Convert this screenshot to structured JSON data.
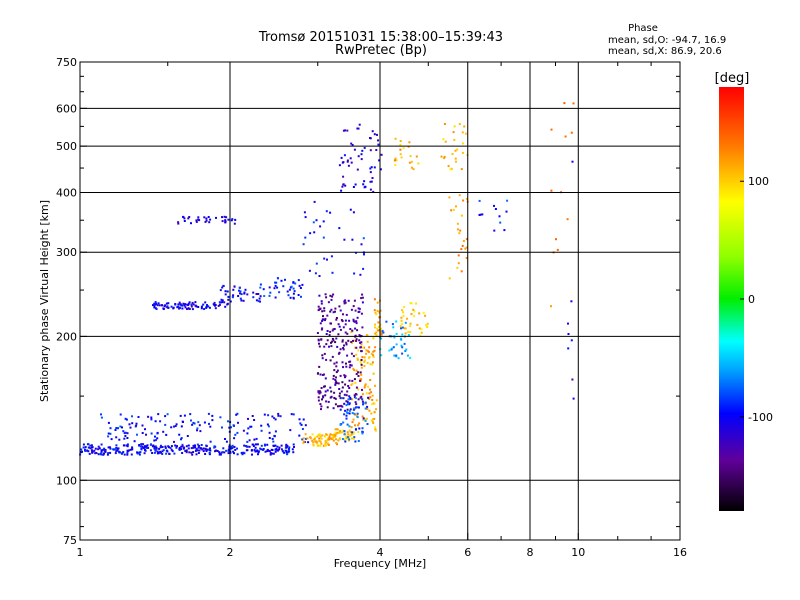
{
  "chart_data": {
    "type": "scatter",
    "title": "Tromsø 20151031 15:38:00–15:39:43",
    "subtitle": "RwPretec (Bp)",
    "xlabel": "Frequency [MHz]",
    "ylabel": "Stationary phase Virtual Height [km]",
    "x_scale": "log",
    "y_scale": "log",
    "xlim": [
      1,
      16
    ],
    "ylim": [
      75,
      750
    ],
    "x_ticks": [
      1,
      2,
      4,
      6,
      8,
      10,
      16
    ],
    "x_tick_labels": [
      "1",
      "2",
      "4",
      "6",
      "8",
      "10",
      "16"
    ],
    "x_gridlines": [
      2,
      4,
      6,
      8,
      10
    ],
    "y_ticks": [
      75,
      100,
      200,
      300,
      400,
      500,
      600,
      750
    ],
    "y_tick_labels": [
      "75",
      "100",
      "200",
      "300",
      "400",
      "500",
      "600",
      "750"
    ],
    "y_gridlines": [
      100,
      200,
      300,
      400,
      500,
      600
    ],
    "grid": true,
    "stats": {
      "heading": "Phase",
      "line_o": "mean, sd,O: -94.7, 16.9",
      "line_x": "mean, sd,X: 86.9, 20.6"
    },
    "colorbar": {
      "unit": "[deg]",
      "range": [
        -180,
        180
      ],
      "ticks": [
        100,
        0,
        -100
      ],
      "tick_labels": [
        "100",
        "0",
        "-100"
      ]
    },
    "clusters": [
      {
        "x_range": [
          1.0,
          2.7
        ],
        "y": [
          113,
          119
        ],
        "phase": -100,
        "n": 340
      },
      {
        "x_range": [
          1.1,
          2.9
        ],
        "y": [
          120,
          138
        ],
        "phase": -95,
        "n": 150
      },
      {
        "x_range": [
          1.4,
          2.0
        ],
        "y": [
          228,
          236
        ],
        "phase": -105,
        "n": 90
      },
      {
        "x_range": [
          1.9,
          2.3
        ],
        "y": [
          236,
          256
        ],
        "phase": -100,
        "n": 40
      },
      {
        "x_range": [
          2.3,
          2.8
        ],
        "y": [
          240,
          265
        ],
        "phase": -90,
        "n": 40
      },
      {
        "x_range": [
          1.55,
          2.05
        ],
        "y": [
          343,
          356
        ],
        "phase": -105,
        "n": 35
      },
      {
        "x_range": [
          2.8,
          3.3
        ],
        "y": [
          118,
          125
        ],
        "phase": 110,
        "n": 70
      },
      {
        "x_range": [
          3.2,
          3.55
        ],
        "y": [
          121,
          128
        ],
        "phase": 105,
        "n": 40
      },
      {
        "x_range": [
          3.5,
          3.95
        ],
        "y": [
          125,
          205
        ],
        "phase": 110,
        "n": 110
      },
      {
        "x_range": [
          3.9,
          4.05
        ],
        "y": [
          200,
          240
        ],
        "phase": 115,
        "n": 25
      },
      {
        "x_range": [
          3.0,
          3.7
        ],
        "y": [
          140,
          245
        ],
        "phase": -135,
        "n": 260
      },
      {
        "x_range": [
          3.3,
          3.8
        ],
        "y": [
          120,
          150
        ],
        "phase": -80,
        "n": 60
      },
      {
        "x_range": [
          4.0,
          4.6
        ],
        "y": [
          180,
          215
        ],
        "phase": -60,
        "n": 40
      },
      {
        "x_range": [
          4.4,
          5.0
        ],
        "y": [
          200,
          235
        ],
        "phase": 100,
        "n": 35
      },
      {
        "x_range": [
          3.3,
          4.05
        ],
        "y": [
          400,
          560
        ],
        "phase": -110,
        "n": 60
      },
      {
        "x_range": [
          2.8,
          3.9
        ],
        "y": [
          265,
          390
        ],
        "phase": -95,
        "n": 35
      },
      {
        "x_range": [
          4.2,
          4.8
        ],
        "y": [
          440,
          520
        ],
        "phase": 110,
        "n": 20
      },
      {
        "x_range": [
          5.3,
          6.0
        ],
        "y": [
          430,
          560
        ],
        "phase": 110,
        "n": 25
      },
      {
        "x_range": [
          5.5,
          6.0
        ],
        "y": [
          250,
          400
        ],
        "phase": 115,
        "n": 25
      },
      {
        "x_range": [
          6.3,
          7.3
        ],
        "y": [
          330,
          390
        ],
        "phase": -90,
        "n": 12
      },
      {
        "x_range": [
          8.7,
          9.8
        ],
        "y": [
          220,
          620
        ],
        "phase": 135,
        "n": 12
      },
      {
        "x_range": [
          9.5,
          9.8
        ],
        "y": [
          140,
          530
        ],
        "phase": -110,
        "n": 8
      }
    ]
  }
}
